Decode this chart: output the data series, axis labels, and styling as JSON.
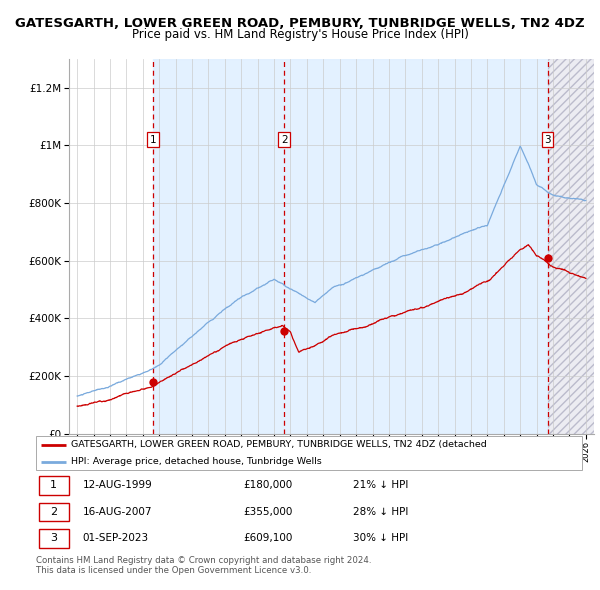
{
  "title": "GATESGARTH, LOWER GREEN ROAD, PEMBURY, TUNBRIDGE WELLS, TN2 4DZ",
  "subtitle": "Price paid vs. HM Land Registry's House Price Index (HPI)",
  "ylim": [
    0,
    1300000
  ],
  "yticks": [
    0,
    200000,
    400000,
    600000,
    800000,
    1000000,
    1200000
  ],
  "ytick_labels": [
    "£0",
    "£200K",
    "£400K",
    "£600K",
    "£800K",
    "£1M",
    "£1.2M"
  ],
  "x_start_year": 1995,
  "x_end_year": 2026,
  "purchases": [
    {
      "label": "1",
      "date": 1999.617,
      "price": 180000,
      "text": "12-AUG-1999",
      "price_text": "£180,000",
      "hpi_text": "21% ↓ HPI"
    },
    {
      "label": "2",
      "date": 2007.617,
      "price": 355000,
      "text": "16-AUG-2007",
      "price_text": "£355,000",
      "hpi_text": "28% ↓ HPI"
    },
    {
      "label": "3",
      "date": 2023.667,
      "price": 609100,
      "text": "01-SEP-2023",
      "price_text": "£609,100",
      "hpi_text": "30% ↓ HPI"
    }
  ],
  "red_line_color": "#cc0000",
  "blue_line_color": "#7aaadd",
  "bg_shaded_color": "#ddeeff",
  "vline_color": "#cc0000",
  "grid_color": "#cccccc",
  "title_fontsize": 9.5,
  "subtitle_fontsize": 8.5,
  "legend_label_red": "GATESGARTH, LOWER GREEN ROAD, PEMBURY, TUNBRIDGE WELLS, TN2 4DZ (detached",
  "legend_label_blue": "HPI: Average price, detached house, Tunbridge Wells",
  "footnote": "Contains HM Land Registry data © Crown copyright and database right 2024.\nThis data is licensed under the Open Government Licence v3.0.",
  "hpi_seed_values": {
    "1995": 130000,
    "1997": 160000,
    "2000": 230000,
    "2004": 430000,
    "2007": 530000,
    "2008.5": 490000,
    "2009.5": 460000,
    "2010.5": 510000,
    "2016": 640000,
    "2020": 720000,
    "2022": 1000000,
    "2022.5": 940000,
    "2023": 870000,
    "2024": 840000,
    "2025": 830000,
    "2026": 820000
  },
  "red_seed_values": {
    "1995": 95000,
    "1997": 120000,
    "2000": 170000,
    "2004": 300000,
    "2007.5": 380000,
    "2008": 360000,
    "2008.5": 290000,
    "2009.5": 310000,
    "2010.5": 340000,
    "2016": 440000,
    "2020": 530000,
    "2022": 640000,
    "2022.5": 660000,
    "2023": 620000,
    "2023.5": 600000,
    "2024": 580000,
    "2025": 560000,
    "2026": 545000
  }
}
